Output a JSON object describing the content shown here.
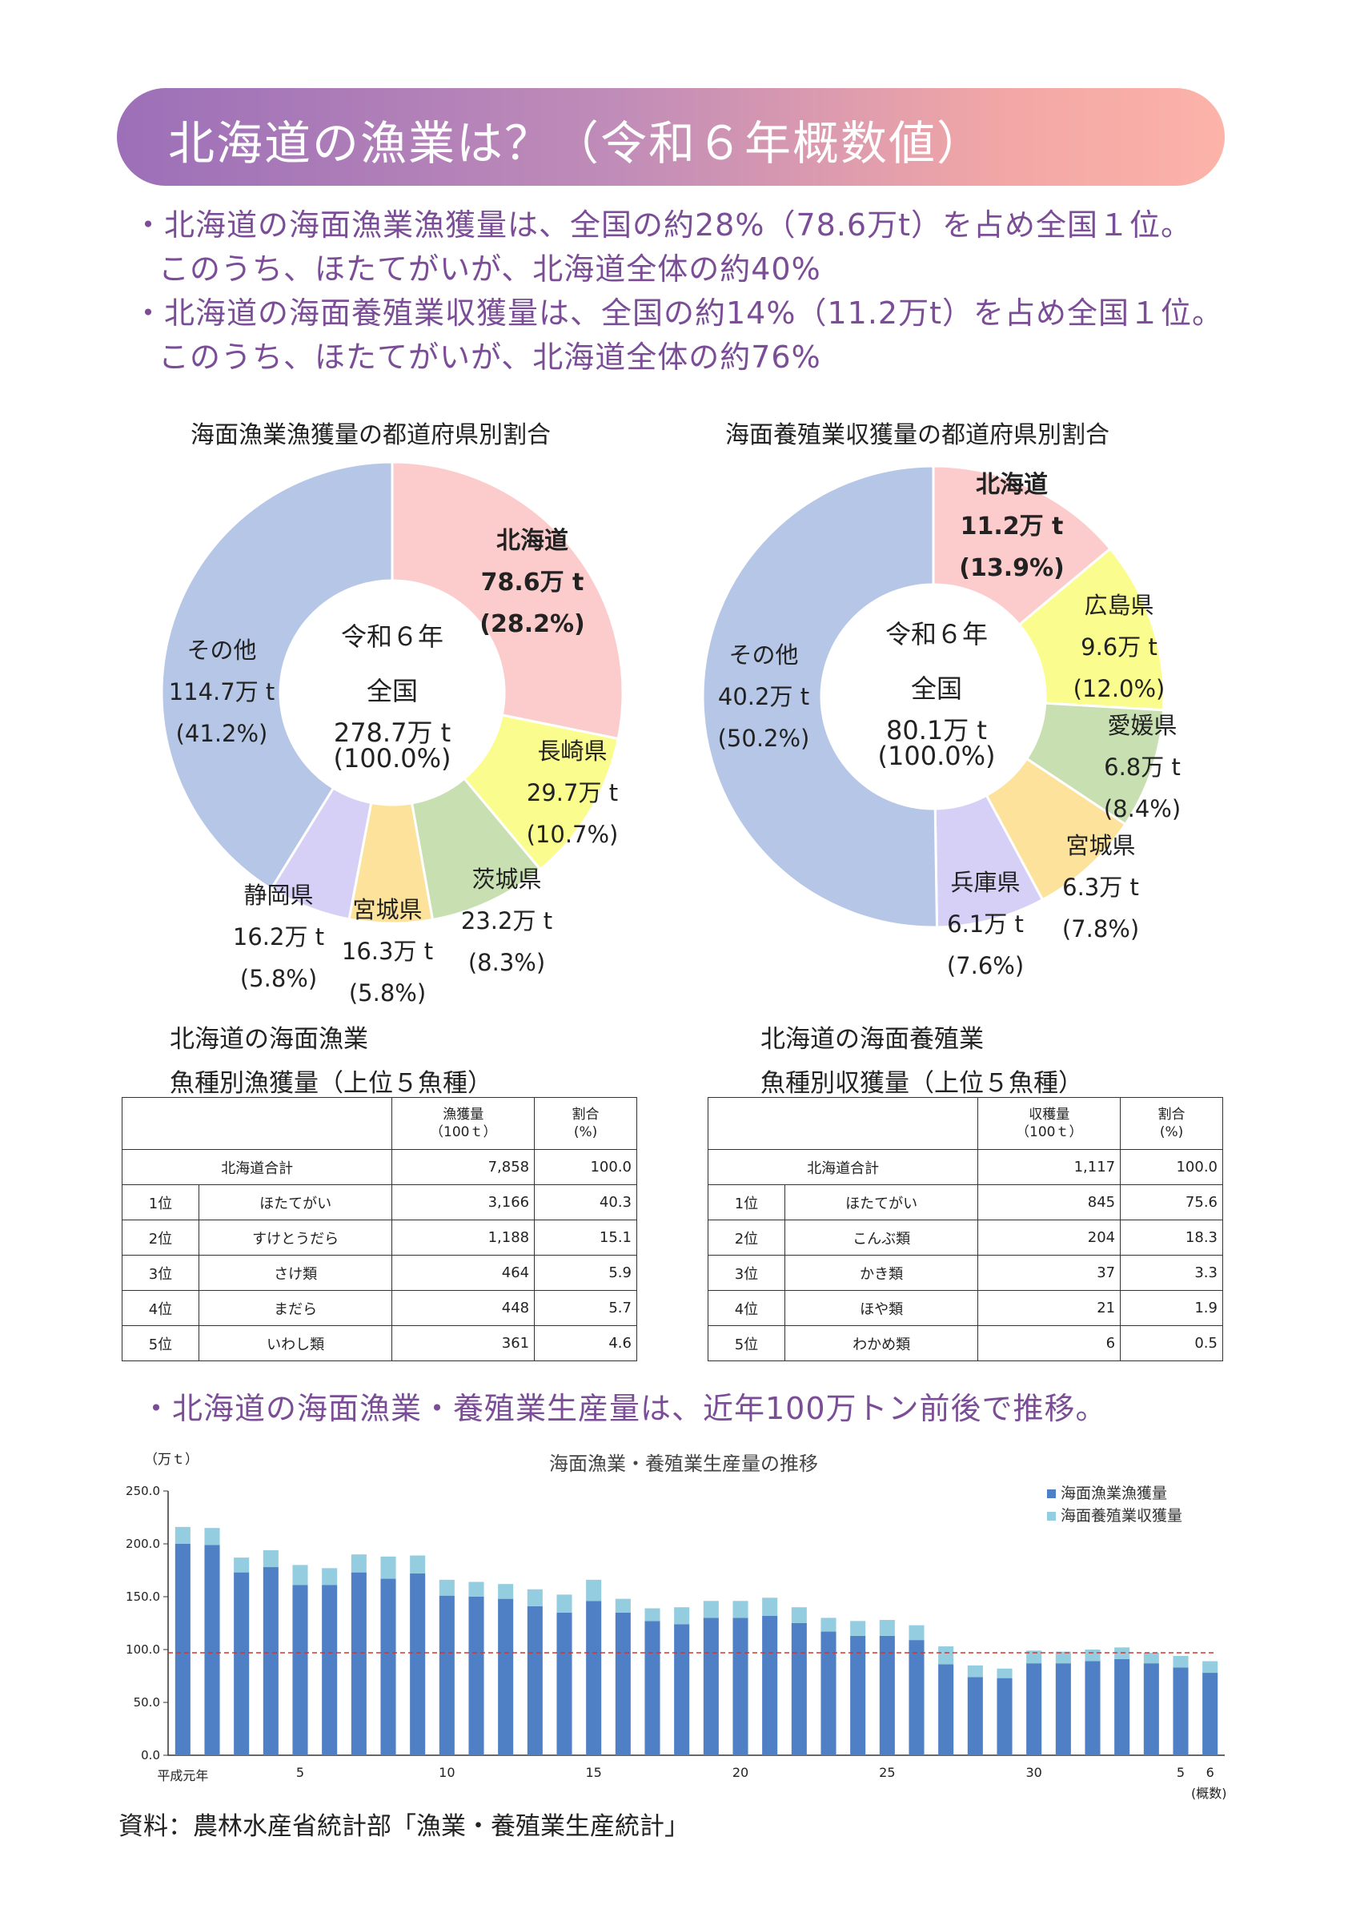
{
  "header": {
    "title": "北海道の漁業は？（令和６年概数値）"
  },
  "bullets": {
    "b1": "・北海道の海面漁業漁獲量は、全国の約28%（78.6万t）を占め全国１位。",
    "b1_sub": "このうち、ほたてがいが、北海道全体の約40%",
    "b2": "・北海道の海面養殖業収獲量は、全国の約14%（11.2万t）を占め全国１位。",
    "b2_sub": "このうち、ほたてがいが、北海道全体の約76%",
    "b3": "・北海道の海面漁業・養殖業生産量は、近年100万トン前後で推移。"
  },
  "pie1": {
    "title": "海面漁業漁獲量の都道府県別割合",
    "center": {
      "line1": "令和６年",
      "line2": "全国",
      "line3": "278.7万 t",
      "line4": "(100.0%)"
    },
    "slices": [
      {
        "name": "北海道",
        "value": "78.6万 t",
        "pct": "(28.2%)",
        "share": 28.2,
        "color": "#fccccc"
      },
      {
        "name": "長崎県",
        "value": "29.7万 t",
        "pct": "(10.7%)",
        "share": 10.7,
        "color": "#fafd8e"
      },
      {
        "name": "茨城県",
        "value": "23.2万 t",
        "pct": "(8.3%)",
        "share": 8.3,
        "color": "#c8e0b1"
      },
      {
        "name": "宮城県",
        "value": "16.3万 t",
        "pct": "(5.8%)",
        "share": 5.8,
        "color": "#fce29a"
      },
      {
        "name": "静岡県",
        "value": "16.2万 t",
        "pct": "(5.8%)",
        "share": 5.8,
        "color": "#d6d0f6"
      },
      {
        "name": "その他",
        "value": "114.7万 t",
        "pct": "(41.2%)",
        "share": 41.2,
        "color": "#b5c6e7"
      }
    ]
  },
  "pie2": {
    "title": "海面養殖業収獲量の都道府県別割合",
    "center": {
      "line1": "令和６年",
      "line2": "全国",
      "line3": "80.1万 t",
      "line4": "(100.0%)"
    },
    "slices": [
      {
        "name": "北海道",
        "value": "11.2万 t",
        "pct": "(13.9%)",
        "share": 13.9,
        "color": "#fccccc"
      },
      {
        "name": "広島県",
        "value": "9.6万 t",
        "pct": "(12.0%)",
        "share": 12.0,
        "color": "#fafd8e"
      },
      {
        "name": "愛媛県",
        "value": "6.8万 t",
        "pct": "(8.4%)",
        "share": 8.4,
        "color": "#c8e0b1"
      },
      {
        "name": "宮城県",
        "value": "6.3万 t",
        "pct": "(7.8%)",
        "share": 7.8,
        "color": "#fce29a"
      },
      {
        "name": "兵庫県",
        "value": "6.1万 t",
        "pct": "(7.6%)",
        "share": 7.6,
        "color": "#d6d0f6"
      },
      {
        "name": "その他",
        "value": "40.2万 t",
        "pct": "(50.2%)",
        "share": 50.2,
        "color": "#b5c6e7"
      }
    ]
  },
  "table1": {
    "title1": "北海道の海面漁業",
    "title2": "魚種別漁獲量（上位５魚種）",
    "col_amount_1": "漁獲量",
    "col_amount_2": "（100ｔ）",
    "col_pct_1": "割合",
    "col_pct_2": "(%)",
    "total_label": "北海道合計",
    "total_amount": "7,858",
    "total_pct": "100.0",
    "rows": [
      {
        "rank": "1位",
        "species": "ほたてがい",
        "amount": "3,166",
        "pct": "40.3"
      },
      {
        "rank": "2位",
        "species": "すけとうだら",
        "amount": "1,188",
        "pct": "15.1"
      },
      {
        "rank": "3位",
        "species": "さけ類",
        "amount": "464",
        "pct": "5.9"
      },
      {
        "rank": "4位",
        "species": "まだら",
        "amount": "448",
        "pct": "5.7"
      },
      {
        "rank": "5位",
        "species": "いわし類",
        "amount": "361",
        "pct": "4.6"
      }
    ]
  },
  "table2": {
    "title1": "北海道の海面養殖業",
    "title2": "魚種別収獲量（上位５魚種）",
    "col_amount_1": "収穫量",
    "col_amount_2": "（100ｔ）",
    "col_pct_1": "割合",
    "col_pct_2": "(%)",
    "total_label": "北海道合計",
    "total_amount": "1,117",
    "total_pct": "100.0",
    "rows": [
      {
        "rank": "1位",
        "species": "ほたてがい",
        "amount": "845",
        "pct": "75.6"
      },
      {
        "rank": "2位",
        "species": "こんぶ類",
        "amount": "204",
        "pct": "18.3"
      },
      {
        "rank": "3位",
        "species": "かき類",
        "amount": "37",
        "pct": "3.3"
      },
      {
        "rank": "4位",
        "species": "ほや類",
        "amount": "21",
        "pct": "1.9"
      },
      {
        "rank": "5位",
        "species": "わかめ類",
        "amount": "6",
        "pct": "0.5"
      }
    ]
  },
  "chart_data": {
    "type": "bar",
    "title": "海面漁業・養殖業生産量の推移",
    "ylabel": "（万ｔ）",
    "ylim": [
      0,
      250
    ],
    "yticks": [
      "0.0",
      "50.0",
      "100.0",
      "150.0",
      "200.0",
      "250.0"
    ],
    "x_tick_labels": [
      {
        "index": 0,
        "label": "平成元年"
      },
      {
        "index": 4,
        "label": "5"
      },
      {
        "index": 9,
        "label": "10"
      },
      {
        "index": 14,
        "label": "15"
      },
      {
        "index": 19,
        "label": "20"
      },
      {
        "index": 24,
        "label": "25"
      },
      {
        "index": 29,
        "label": "30"
      },
      {
        "index": 34,
        "label": "5"
      },
      {
        "index": 35,
        "label": "6"
      }
    ],
    "x_note": "(概数)",
    "reference_line": 97,
    "stacked": true,
    "series": [
      {
        "name": "海面漁業漁獲量",
        "color": "#4f7fc4",
        "values": [
          200,
          199,
          173,
          178,
          161,
          161,
          173,
          167,
          172,
          151,
          150,
          148,
          141,
          135,
          146,
          135,
          127,
          124,
          130,
          130,
          132,
          125,
          117,
          113,
          113,
          109,
          86,
          74,
          73,
          87,
          87,
          89,
          91,
          87,
          83,
          78
        ]
      },
      {
        "name": "海面養殖業収獲量",
        "color": "#94cce0",
        "values": [
          16,
          16,
          14,
          16,
          19,
          16,
          17,
          21,
          17,
          15,
          14,
          14,
          16,
          17,
          20,
          13,
          12,
          16,
          16,
          16,
          17,
          15,
          13,
          14,
          15,
          14,
          17,
          11,
          9,
          12,
          11,
          11,
          11,
          10,
          11,
          11
        ]
      }
    ]
  },
  "source": "資料：農林水産省統計部「漁業・養殖業生産統計」"
}
